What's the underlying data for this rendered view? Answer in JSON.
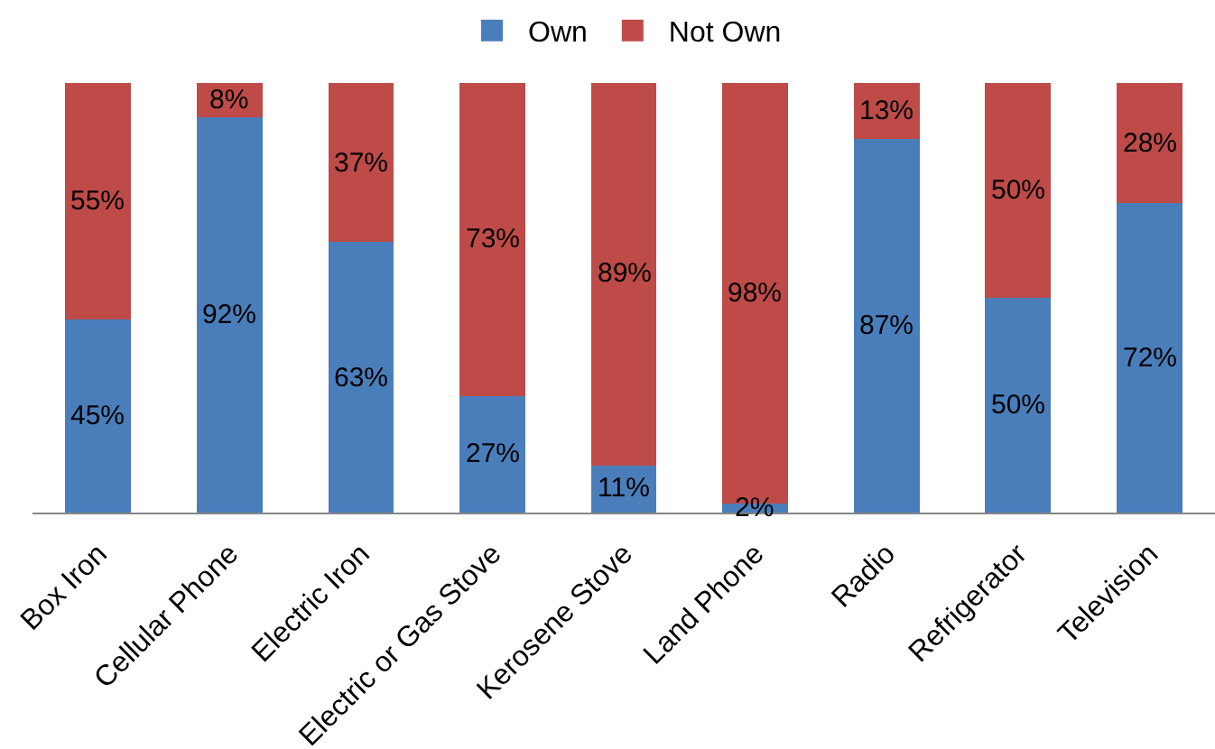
{
  "chart_data": {
    "type": "bar",
    "stacked": true,
    "legend": "top",
    "tick_labels": "x",
    "ylim": [
      0,
      100
    ],
    "categories": [
      "Box Iron",
      "Cellular Phone",
      "Electric Iron",
      "Electric or Gas Stove",
      "Kerosene Stove",
      "Land Phone",
      "Radio",
      "Refrigerator",
      "Television"
    ],
    "series": [
      {
        "name": "Own",
        "color": "#4a7ebb",
        "values": [
          45,
          92,
          63,
          27,
          11,
          2,
          87,
          50,
          72
        ],
        "value_labels": [
          "45%",
          "92%",
          "63%",
          "27%",
          "11%",
          "2%",
          "87%",
          "50%",
          "72%"
        ]
      },
      {
        "name": "Not Own",
        "color": "#be4b48",
        "values": [
          55,
          8,
          37,
          73,
          89,
          98,
          13,
          50,
          28
        ],
        "value_labels": [
          "55%",
          "8%",
          "37%",
          "73%",
          "89%",
          "98%",
          "13%",
          "50%",
          "28%"
        ]
      }
    ]
  }
}
